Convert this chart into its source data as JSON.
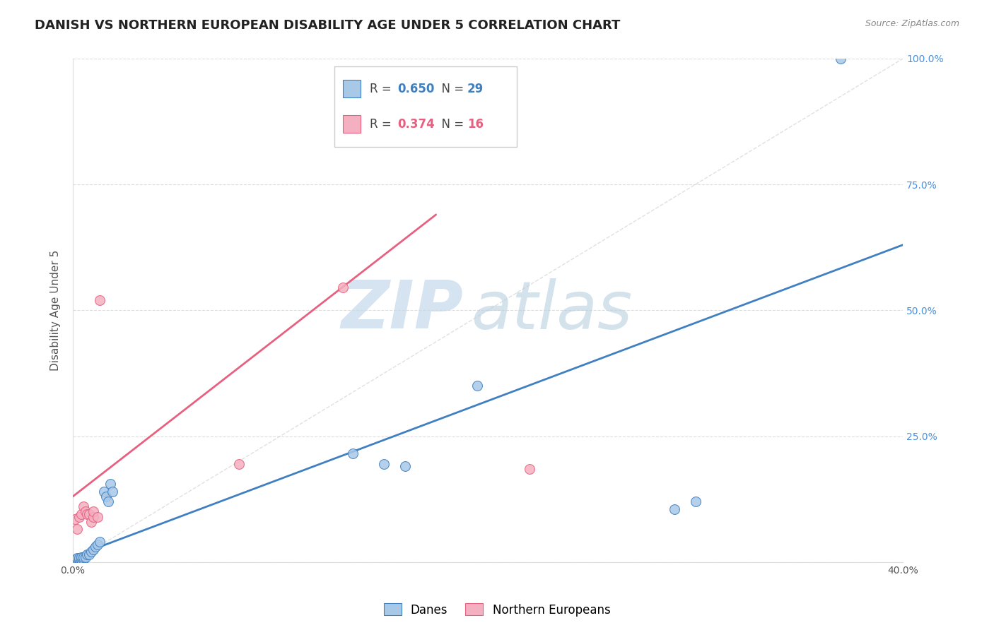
{
  "title": "DANISH VS NORTHERN EUROPEAN DISABILITY AGE UNDER 5 CORRELATION CHART",
  "source": "Source: ZipAtlas.com",
  "ylabel": "Disability Age Under 5",
  "xlim": [
    0.0,
    0.4
  ],
  "ylim": [
    0.0,
    1.0
  ],
  "xticks": [
    0.0,
    0.05,
    0.1,
    0.15,
    0.2,
    0.25,
    0.3,
    0.35,
    0.4
  ],
  "xticklabels": [
    "0.0%",
    "",
    "",
    "",
    "",
    "",
    "",
    "",
    "40.0%"
  ],
  "yticks_right": [
    0.0,
    0.25,
    0.5,
    0.75,
    1.0
  ],
  "yticklabels_right": [
    "",
    "25.0%",
    "50.0%",
    "75.0%",
    "100.0%"
  ],
  "blue_color": "#a8c8e8",
  "pink_color": "#f4b0c0",
  "blue_line_color": "#4080c0",
  "pink_line_color": "#e86080",
  "R_blue": 0.65,
  "N_blue": 29,
  "R_pink": 0.374,
  "N_pink": 16,
  "legend_blue_label": "Danes",
  "legend_pink_label": "Northern Europeans",
  "watermark_zip": "ZIP",
  "watermark_atlas": "atlas",
  "blue_scatter_x": [
    0.001,
    0.002,
    0.002,
    0.003,
    0.003,
    0.004,
    0.004,
    0.005,
    0.005,
    0.006,
    0.007,
    0.008,
    0.009,
    0.01,
    0.011,
    0.012,
    0.013,
    0.015,
    0.016,
    0.017,
    0.018,
    0.019,
    0.135,
    0.15,
    0.16,
    0.195,
    0.29,
    0.3,
    0.37
  ],
  "blue_scatter_y": [
    0.005,
    0.005,
    0.008,
    0.005,
    0.008,
    0.005,
    0.01,
    0.005,
    0.01,
    0.01,
    0.015,
    0.015,
    0.02,
    0.025,
    0.03,
    0.035,
    0.04,
    0.14,
    0.13,
    0.12,
    0.155,
    0.14,
    0.215,
    0.195,
    0.19,
    0.35,
    0.105,
    0.12,
    1.0
  ],
  "pink_scatter_x": [
    0.001,
    0.002,
    0.003,
    0.004,
    0.005,
    0.006,
    0.007,
    0.008,
    0.009,
    0.01,
    0.01,
    0.012,
    0.013,
    0.08,
    0.13,
    0.22
  ],
  "pink_scatter_y": [
    0.085,
    0.065,
    0.09,
    0.095,
    0.11,
    0.1,
    0.095,
    0.095,
    0.08,
    0.09,
    0.1,
    0.09,
    0.52,
    0.195,
    0.545,
    0.185
  ],
  "blue_line_x": [
    0.0,
    0.4
  ],
  "blue_line_y": [
    0.01,
    0.63
  ],
  "pink_line_x": [
    0.0,
    0.175
  ],
  "pink_line_y": [
    0.13,
    0.69
  ],
  "diag_line_x": [
    0.0,
    0.4
  ],
  "diag_line_y": [
    0.0,
    1.0
  ],
  "bg_color": "#ffffff",
  "grid_color": "#dddddd",
  "title_fontsize": 13,
  "axis_label_fontsize": 11,
  "tick_fontsize": 10,
  "right_tick_color": "#4a90d9"
}
